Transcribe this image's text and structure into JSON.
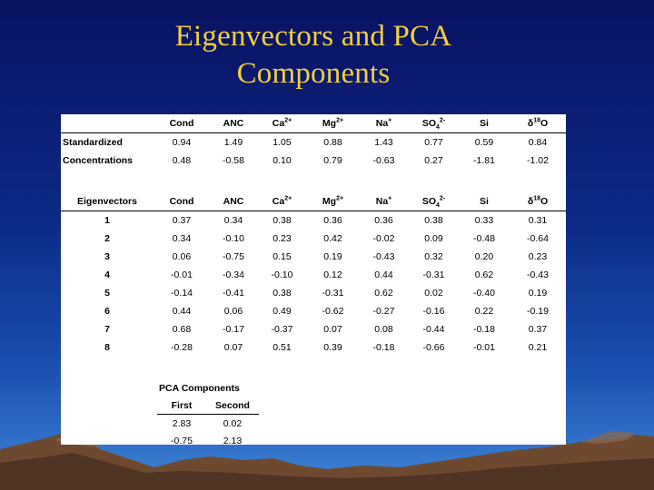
{
  "slide": {
    "title_line1": "Eigenvectors and PCA",
    "title_line2": "Components"
  },
  "colors": {
    "background_top": "#0a1160",
    "background_bottom": "#3f86d6",
    "title": "#f2cf3f",
    "panel": "#ffffff"
  },
  "columns": {
    "cond": "Cond",
    "anc": "ANC",
    "ca": "Ca",
    "ca_sup": "2+",
    "mg": "Mg",
    "mg_sup": "2+",
    "na": "Na",
    "na_sup": "+",
    "so4": "SO",
    "so4_sub": "4",
    "so4_sup": "2-",
    "si": "Si",
    "d18o_delta": "δ",
    "d18o_sup": "18",
    "d18o": "O"
  },
  "standardized": {
    "label1": "Standardized",
    "label2": "Concentrations",
    "row1": [
      "0.94",
      "1.49",
      "1.05",
      "0.88",
      "1.43",
      "0.77",
      "0.59",
      "0.84"
    ],
    "row2": [
      "0.48",
      "-0.58",
      "0.10",
      "0.79",
      "-0.63",
      "0.27",
      "-1.81",
      "-1.02"
    ]
  },
  "eigen": {
    "header_label": "Eigenvectors",
    "rows": [
      {
        "id": "1",
        "values": [
          "0.37",
          "0.34",
          "0.38",
          "0.36",
          "0.36",
          "0.38",
          "0.33",
          "0.31"
        ]
      },
      {
        "id": "2",
        "values": [
          "0.34",
          "-0.10",
          "0.23",
          "0.42",
          "-0.02",
          "0.09",
          "-0.48",
          "-0.64"
        ]
      },
      {
        "id": "3",
        "values": [
          "0.06",
          "-0.75",
          "0.15",
          "0.19",
          "-0.43",
          "0.32",
          "0.20",
          "0.23"
        ]
      },
      {
        "id": "4",
        "values": [
          "-0.01",
          "-0.34",
          "-0.10",
          "0.12",
          "0.44",
          "-0.31",
          "0.62",
          "-0.43"
        ]
      },
      {
        "id": "5",
        "values": [
          "-0.14",
          "-0.41",
          "0.38",
          "-0.31",
          "0.62",
          "0.02",
          "-0.40",
          "0.19"
        ]
      },
      {
        "id": "6",
        "values": [
          "0.44",
          "0.06",
          "0.49",
          "-0.62",
          "-0.27",
          "-0.16",
          "0.22",
          "-0.19"
        ]
      },
      {
        "id": "7",
        "values": [
          "0.68",
          "-0.17",
          "-0.37",
          "0.07",
          "0.08",
          "-0.44",
          "-0.18",
          "0.37"
        ]
      },
      {
        "id": "8",
        "values": [
          "-0.28",
          "0.07",
          "0.51",
          "0.39",
          "-0.18",
          "-0.66",
          "-0.01",
          "0.21"
        ]
      }
    ]
  },
  "pca": {
    "title": "PCA Components",
    "first_label": "First",
    "second_label": "Second",
    "rows": [
      [
        "2.83",
        "0.02"
      ],
      [
        "-0.75",
        "2.13"
      ]
    ]
  }
}
